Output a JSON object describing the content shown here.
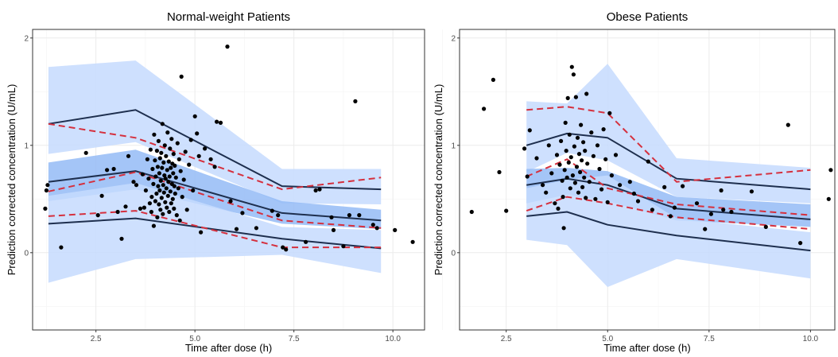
{
  "chart_data": [
    {
      "type": "line",
      "title": "Normal-weight Patients",
      "xlabel": "Time after dose (h)",
      "ylabel": "Prediction corrected concentration (U/mL)",
      "xlim": [
        0.9,
        10.8
      ],
      "ylim": [
        -0.72,
        2.08
      ],
      "xticks": [
        2.5,
        5.0,
        7.5,
        10.0
      ],
      "xtick_labels": [
        "2.5",
        "5.0",
        "7.5",
        "10.0"
      ],
      "yticks": [
        0,
        1,
        2
      ],
      "ytick_labels": [
        "0",
        "1",
        "2"
      ],
      "bin_x": [
        1.3,
        3.5,
        7.2,
        9.7
      ],
      "bands": [
        {
          "name": "upper PI",
          "lower": [
            0.92,
            1.03,
            0.46,
            0.45
          ],
          "upper": [
            1.73,
            1.79,
            0.78,
            0.78
          ]
        },
        {
          "name": "median PI",
          "lower": [
            0.48,
            0.59,
            0.27,
            0.22
          ],
          "upper": [
            0.84,
            0.96,
            0.48,
            0.4
          ]
        },
        {
          "name": "lower PI",
          "lower": [
            -0.28,
            -0.06,
            -0.02,
            -0.19
          ],
          "upper": [
            0.53,
            0.65,
            0.24,
            0.21
          ]
        }
      ],
      "simulated_lines": [
        {
          "name": "upper",
          "y": [
            1.2,
            1.33,
            0.62,
            0.59
          ]
        },
        {
          "name": "median",
          "y": [
            0.66,
            0.76,
            0.37,
            0.3
          ]
        },
        {
          "name": "lower",
          "y": [
            0.27,
            0.32,
            0.13,
            0.04
          ]
        }
      ],
      "observed_lines": [
        {
          "name": "upper",
          "y": [
            1.2,
            1.07,
            0.59,
            0.7
          ]
        },
        {
          "name": "median",
          "y": [
            0.57,
            0.75,
            0.3,
            0.23
          ]
        },
        {
          "name": "lower",
          "y": [
            0.34,
            0.39,
            0.05,
            0.05
          ]
        }
      ],
      "points": [
        [
          1.22,
          0.41
        ],
        [
          1.25,
          0.58
        ],
        [
          1.28,
          0.63
        ],
        [
          1.62,
          0.05
        ],
        [
          2.25,
          0.93
        ],
        [
          2.55,
          0.35
        ],
        [
          2.65,
          0.53
        ],
        [
          2.78,
          0.77
        ],
        [
          2.95,
          0.78
        ],
        [
          3.05,
          0.38
        ],
        [
          3.15,
          0.13
        ],
        [
          3.25,
          0.43
        ],
        [
          3.32,
          0.9
        ],
        [
          3.45,
          0.66
        ],
        [
          3.52,
          0.63
        ],
        [
          3.62,
          0.41
        ],
        [
          3.68,
          0.73
        ],
        [
          3.72,
          0.42
        ],
        [
          3.76,
          0.58
        ],
        [
          3.8,
          0.87
        ],
        [
          3.83,
          0.69
        ],
        [
          3.86,
          0.46
        ],
        [
          3.88,
          0.96
        ],
        [
          3.9,
          0.38
        ],
        [
          3.91,
          0.52
        ],
        [
          3.93,
          0.78
        ],
        [
          3.95,
          0.64
        ],
        [
          3.96,
          0.25
        ],
        [
          3.97,
          1.1
        ],
        [
          3.99,
          0.86
        ],
        [
          4.0,
          0.48
        ],
        [
          4.01,
          0.71
        ],
        [
          4.03,
          0.55
        ],
        [
          4.04,
          0.95
        ],
        [
          4.05,
          0.33
        ],
        [
          4.06,
          0.8
        ],
        [
          4.07,
          0.62
        ],
        [
          4.08,
          1.04
        ],
        [
          4.09,
          0.45
        ],
        [
          4.1,
          0.74
        ],
        [
          4.11,
          0.58
        ],
        [
          4.12,
          0.88
        ],
        [
          4.13,
          0.4
        ],
        [
          4.14,
          0.67
        ],
        [
          4.15,
          0.93
        ],
        [
          4.16,
          0.51
        ],
        [
          4.17,
          0.79
        ],
        [
          4.18,
          1.2
        ],
        [
          4.19,
          0.36
        ],
        [
          4.2,
          0.63
        ],
        [
          4.21,
          0.84
        ],
        [
          4.22,
          0.56
        ],
        [
          4.23,
          0.72
        ],
        [
          4.24,
          1.0
        ],
        [
          4.25,
          0.47
        ],
        [
          4.26,
          0.69
        ],
        [
          4.27,
          0.9
        ],
        [
          4.28,
          0.6
        ],
        [
          4.29,
          0.42
        ],
        [
          4.3,
          0.77
        ],
        [
          4.31,
          1.12
        ],
        [
          4.32,
          0.53
        ],
        [
          4.33,
          0.66
        ],
        [
          4.34,
          0.85
        ],
        [
          4.35,
          0.38
        ],
        [
          4.36,
          0.71
        ],
        [
          4.37,
          0.97
        ],
        [
          4.38,
          0.57
        ],
        [
          4.39,
          0.79
        ],
        [
          4.4,
          0.46
        ],
        [
          4.41,
          1.06
        ],
        [
          4.42,
          0.64
        ],
        [
          4.43,
          0.83
        ],
        [
          4.44,
          0.5
        ],
        [
          4.45,
          0.74
        ],
        [
          4.46,
          0.92
        ],
        [
          4.47,
          0.41
        ],
        [
          4.48,
          0.62
        ],
        [
          4.49,
          0.81
        ],
        [
          4.5,
          0.55
        ],
        [
          4.52,
          0.7
        ],
        [
          4.54,
          0.35
        ],
        [
          4.56,
          1.02
        ],
        [
          4.58,
          0.6
        ],
        [
          4.6,
          0.87
        ],
        [
          4.62,
          0.3
        ],
        [
          4.64,
          0.76
        ],
        [
          4.66,
          1.64
        ],
        [
          4.68,
          0.52
        ],
        [
          4.72,
          0.68
        ],
        [
          4.76,
          0.94
        ],
        [
          4.8,
          0.4
        ],
        [
          4.85,
          0.82
        ],
        [
          4.9,
          1.05
        ],
        [
          4.95,
          0.58
        ],
        [
          5.0,
          1.27
        ],
        [
          5.05,
          1.11
        ],
        [
          5.1,
          0.9
        ],
        [
          5.15,
          0.19
        ],
        [
          5.25,
          0.97
        ],
        [
          5.4,
          0.87
        ],
        [
          5.5,
          0.8
        ],
        [
          5.55,
          1.22
        ],
        [
          5.65,
          1.21
        ],
        [
          5.82,
          1.92
        ],
        [
          5.9,
          0.48
        ],
        [
          6.05,
          0.22
        ],
        [
          6.2,
          0.37
        ],
        [
          6.55,
          0.23
        ],
        [
          6.95,
          0.39
        ],
        [
          7.1,
          0.35
        ],
        [
          7.22,
          0.05
        ],
        [
          7.3,
          0.03
        ],
        [
          7.8,
          0.1
        ],
        [
          8.05,
          0.58
        ],
        [
          8.15,
          0.59
        ],
        [
          8.45,
          0.33
        ],
        [
          8.5,
          0.21
        ],
        [
          8.75,
          0.06
        ],
        [
          8.9,
          0.35
        ],
        [
          9.05,
          1.41
        ],
        [
          9.15,
          0.35
        ],
        [
          9.5,
          0.26
        ],
        [
          9.6,
          0.23
        ],
        [
          10.05,
          0.21
        ],
        [
          10.5,
          0.1
        ]
      ]
    },
    {
      "type": "line",
      "title": "Obese Patients",
      "xlabel": "Time after dose (h)",
      "ylabel": "Prediction corrected concentration (U/mL)",
      "xlim": [
        1.35,
        10.6
      ],
      "ylim": [
        -0.72,
        2.08
      ],
      "xticks": [
        2.5,
        5.0,
        7.5,
        10.0
      ],
      "xtick_labels": [
        "2.5",
        "5.0",
        "7.5",
        "10.0"
      ],
      "yticks": [
        0,
        1,
        2
      ],
      "ytick_labels": [
        "0",
        "1",
        "2"
      ],
      "bin_x": [
        3.0,
        4.0,
        5.0,
        6.7,
        10.0
      ],
      "bands": [
        {
          "name": "upper PI",
          "lower": [
            0.75,
            0.93,
            0.86,
            0.52,
            0.46
          ],
          "upper": [
            1.41,
            1.39,
            1.76,
            0.88,
            0.79
          ]
        },
        {
          "name": "median PI",
          "lower": [
            0.46,
            0.54,
            0.48,
            0.3,
            0.24
          ],
          "upper": [
            0.78,
            0.79,
            0.76,
            0.52,
            0.45
          ]
        },
        {
          "name": "lower PI",
          "lower": [
            0.12,
            0.07,
            -0.32,
            -0.06,
            -0.24
          ],
          "upper": [
            0.6,
            0.68,
            0.72,
            0.32,
            0.19
          ]
        }
      ],
      "simulated_lines": [
        {
          "name": "upper",
          "y": [
            1.0,
            1.11,
            1.07,
            0.69,
            0.59
          ]
        },
        {
          "name": "median",
          "y": [
            0.63,
            0.69,
            0.63,
            0.41,
            0.31
          ]
        },
        {
          "name": "lower",
          "y": [
            0.34,
            0.38,
            0.26,
            0.16,
            0.02
          ]
        }
      ],
      "observed_lines": [
        {
          "name": "upper",
          "y": [
            1.33,
            1.36,
            1.3,
            0.66,
            0.77
          ]
        },
        {
          "name": "median",
          "y": [
            0.71,
            0.87,
            0.6,
            0.45,
            0.35
          ]
        },
        {
          "name": "lower",
          "y": [
            0.39,
            0.52,
            0.46,
            0.33,
            0.22
          ]
        }
      ],
      "points": [
        [
          1.65,
          0.38
        ],
        [
          1.95,
          1.34
        ],
        [
          2.18,
          1.61
        ],
        [
          2.33,
          0.75
        ],
        [
          2.5,
          0.39
        ],
        [
          2.95,
          0.97
        ],
        [
          3.02,
          0.71
        ],
        [
          3.08,
          1.14
        ],
        [
          3.25,
          0.88
        ],
        [
          3.4,
          0.63
        ],
        [
          3.48,
          0.56
        ],
        [
          3.55,
          1.0
        ],
        [
          3.62,
          0.74
        ],
        [
          3.7,
          0.46
        ],
        [
          3.75,
          0.91
        ],
        [
          3.78,
          0.41
        ],
        [
          3.82,
          0.82
        ],
        [
          3.85,
          1.04
        ],
        [
          3.88,
          0.67
        ],
        [
          3.9,
          0.52
        ],
        [
          3.92,
          0.23
        ],
        [
          3.94,
          0.77
        ],
        [
          3.96,
          1.21
        ],
        [
          3.98,
          0.95
        ],
        [
          4.0,
          0.7
        ],
        [
          4.02,
          1.44
        ],
        [
          4.04,
          0.84
        ],
        [
          4.06,
          1.1
        ],
        [
          4.08,
          0.6
        ],
        [
          4.1,
          0.89
        ],
        [
          4.12,
          1.73
        ],
        [
          4.14,
          0.72
        ],
        [
          4.16,
          1.66
        ],
        [
          4.18,
          0.99
        ],
        [
          4.2,
          0.65
        ],
        [
          4.22,
          1.45
        ],
        [
          4.24,
          0.8
        ],
        [
          4.26,
          1.07
        ],
        [
          4.28,
          0.56
        ],
        [
          4.3,
          0.92
        ],
        [
          4.32,
          0.75
        ],
        [
          4.34,
          1.19
        ],
        [
          4.36,
          0.86
        ],
        [
          4.38,
          0.61
        ],
        [
          4.4,
          1.03
        ],
        [
          4.42,
          0.7
        ],
        [
          4.44,
          0.95
        ],
        [
          4.46,
          0.51
        ],
        [
          4.48,
          1.48
        ],
        [
          4.5,
          0.83
        ],
        [
          4.55,
          0.66
        ],
        [
          4.6,
          1.12
        ],
        [
          4.65,
          0.9
        ],
        [
          4.7,
          0.5
        ],
        [
          4.75,
          1.0
        ],
        [
          4.8,
          0.78
        ],
        [
          4.85,
          0.59
        ],
        [
          4.9,
          1.15
        ],
        [
          4.95,
          0.87
        ],
        [
          5.0,
          0.47
        ],
        [
          5.05,
          1.3
        ],
        [
          5.1,
          0.72
        ],
        [
          5.2,
          0.91
        ],
        [
          5.3,
          0.63
        ],
        [
          5.55,
          0.66
        ],
        [
          5.65,
          0.55
        ],
        [
          5.75,
          0.48
        ],
        [
          6.0,
          0.85
        ],
        [
          6.1,
          0.4
        ],
        [
          6.4,
          0.61
        ],
        [
          6.55,
          0.34
        ],
        [
          6.65,
          0.42
        ],
        [
          6.85,
          0.62
        ],
        [
          7.2,
          0.46
        ],
        [
          7.4,
          0.22
        ],
        [
          7.55,
          0.36
        ],
        [
          7.8,
          0.58
        ],
        [
          7.85,
          0.4
        ],
        [
          8.05,
          0.38
        ],
        [
          8.55,
          0.57
        ],
        [
          8.9,
          0.24
        ],
        [
          9.45,
          1.19
        ],
        [
          9.75,
          0.09
        ],
        [
          10.45,
          0.5
        ],
        [
          10.5,
          0.77
        ]
      ]
    }
  ],
  "colors": {
    "outer_band": "#c6dafe",
    "median_band": "#94bbf6",
    "simulated_line": "#1e2f4e",
    "observed_line": "#d5303e",
    "point": "#000000",
    "grid_major": "#ebebeb",
    "grid_minor": "#f4f4f4",
    "panel_border": "#333333"
  }
}
